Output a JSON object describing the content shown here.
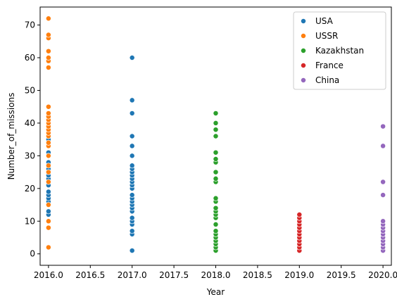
{
  "chart_data": {
    "type": "scatter",
    "title": "",
    "xlabel": "Year",
    "ylabel": "Number_of_missions",
    "xlim": [
      2015.9,
      2020.1
    ],
    "ylim": [
      -3.5,
      75.5
    ],
    "xticks": [
      2016.0,
      2016.5,
      2017.0,
      2017.5,
      2018.0,
      2018.5,
      2019.0,
      2019.5,
      2020.0
    ],
    "xtick_labels": [
      "2016.0",
      "2016.5",
      "2017.0",
      "2017.5",
      "2018.0",
      "2018.5",
      "2019.0",
      "2019.5",
      "2020.0"
    ],
    "yticks": [
      0,
      10,
      20,
      30,
      40,
      50,
      60,
      70
    ],
    "ytick_labels": [
      "0",
      "10",
      "20",
      "30",
      "40",
      "50",
      "60",
      "70"
    ],
    "grid": false,
    "legend_position": "top-right",
    "series": [
      {
        "name": "USA",
        "color": "#1f77b4",
        "x": 2016,
        "y": [
          12,
          13,
          16,
          17,
          18,
          19,
          21,
          23,
          24,
          25,
          26,
          28,
          30,
          31,
          35,
          36,
          37
        ]
      },
      {
        "name": "USSR",
        "color": "#ff7f0e",
        "x": 2016,
        "y": [
          2,
          8,
          10,
          15,
          22,
          25,
          27,
          30,
          33,
          34,
          36,
          37,
          38,
          39,
          40,
          41,
          42,
          43,
          45,
          57,
          59,
          60,
          62,
          66,
          67,
          72
        ]
      },
      {
        "name": "USA",
        "color": "#1f77b4",
        "x": 2017,
        "y": [
          1,
          6,
          7,
          9,
          10,
          11,
          13,
          14,
          15,
          16,
          17,
          18,
          20,
          21,
          22,
          23,
          24,
          25,
          26,
          27,
          30,
          33,
          36,
          43,
          47,
          60
        ]
      },
      {
        "name": "Kazakhstan",
        "color": "#2ca02c",
        "x": 2018,
        "y": [
          1,
          2,
          3,
          4,
          5,
          6,
          7,
          9,
          11,
          12,
          13,
          14,
          16,
          17,
          22,
          23,
          25,
          28,
          29,
          31,
          36,
          38,
          40,
          43
        ]
      },
      {
        "name": "France",
        "color": "#d62728",
        "x": 2019,
        "y": [
          1,
          2,
          3,
          4,
          5,
          6,
          7,
          8,
          9,
          10,
          11,
          12
        ]
      },
      {
        "name": "China",
        "color": "#9467bd",
        "x": 2020,
        "y": [
          1,
          2,
          3,
          4,
          5,
          6,
          7,
          8,
          9,
          10,
          18,
          22,
          33,
          39
        ]
      }
    ],
    "legend": [
      {
        "label": "USA",
        "color": "#1f77b4"
      },
      {
        "label": "USSR",
        "color": "#ff7f0e"
      },
      {
        "label": "Kazakhstan",
        "color": "#2ca02c"
      },
      {
        "label": "France",
        "color": "#d62728"
      },
      {
        "label": "China",
        "color": "#9467bd"
      }
    ]
  }
}
